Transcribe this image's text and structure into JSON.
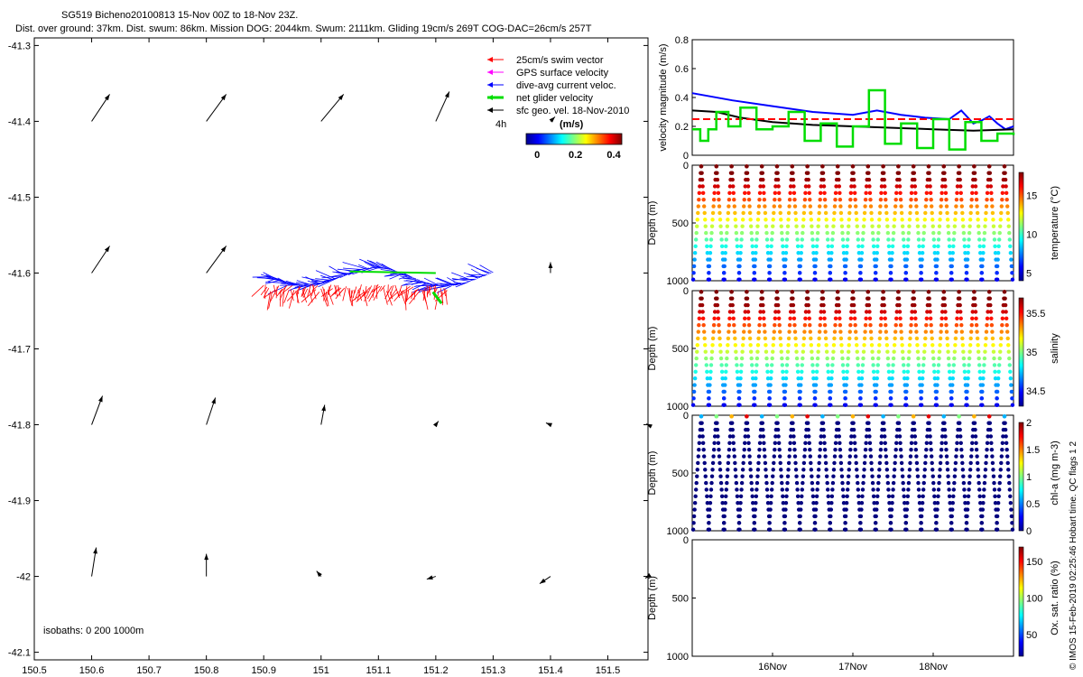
{
  "header": {
    "title": "SG519 Bicheno20100813 15-Nov 00Z to 18-Nov 23Z.",
    "subtitle": "Dist. over ground: 37km. Dist. swum: 86km. Mission DOG: 2044km. Swum: 2111km. Gliding 19cm/s 269T COG-DAC=26cm/s 257T"
  },
  "footer": {
    "credit": "© IMOS 15-Feb-2019 02:25:46 Hobart time. QC flags 1  2",
    "isobaths": "isobaths: 0   200  1000m"
  },
  "legend": {
    "items": [
      {
        "label": "25cm/s swim vector",
        "color": "#ff0000"
      },
      {
        "label": "GPS surface velocity",
        "color": "#ff00ff"
      },
      {
        "label": "dive-avg current veloc.",
        "color": "#0000ff"
      },
      {
        "label": "net glider velocity",
        "color": "#00dd00"
      },
      {
        "label": "sfc geo. vel. 18-Nov-2010",
        "color": "#000000"
      }
    ],
    "scale_label": "4h",
    "colorbar_title": "(m/s)",
    "colorbar_ticks": [
      "0",
      "0.2",
      "0.4"
    ]
  },
  "chart_data": [
    {
      "type": "scatter",
      "title": "map",
      "xlim": [
        150.5,
        151.57
      ],
      "ylim": [
        -42.11,
        -41.29
      ],
      "x_ticks": [
        "150.5",
        "150.6",
        "150.7",
        "150.8",
        "150.9",
        "151",
        "151.1",
        "151.2",
        "151.3",
        "151.4",
        "151.5"
      ],
      "y_ticks": [
        "-41.3",
        "-41.4",
        "-41.5",
        "-41.6",
        "-41.7",
        "-41.8",
        "-41.9",
        "-42",
        "-42.1"
      ],
      "surface_velocity_arrows": [
        {
          "x": 150.6,
          "y": -41.4,
          "u": 0.2,
          "v": 0.3
        },
        {
          "x": 150.8,
          "y": -41.4,
          "u": 0.22,
          "v": 0.3
        },
        {
          "x": 151.0,
          "y": -41.4,
          "u": 0.25,
          "v": 0.3
        },
        {
          "x": 151.2,
          "y": -41.4,
          "u": 0.15,
          "v": 0.33
        },
        {
          "x": 151.4,
          "y": -41.4,
          "u": 0.05,
          "v": 0.05
        },
        {
          "x": 150.6,
          "y": -41.6,
          "u": 0.2,
          "v": 0.3
        },
        {
          "x": 150.8,
          "y": -41.6,
          "u": 0.22,
          "v": 0.3
        },
        {
          "x": 151.4,
          "y": -41.6,
          "u": 0.0,
          "v": 0.12
        },
        {
          "x": 150.6,
          "y": -41.8,
          "u": 0.12,
          "v": 0.32
        },
        {
          "x": 150.8,
          "y": -41.8,
          "u": 0.1,
          "v": 0.3
        },
        {
          "x": 151.0,
          "y": -41.8,
          "u": 0.04,
          "v": 0.22
        },
        {
          "x": 151.2,
          "y": -41.8,
          "u": 0.03,
          "v": 0.04
        },
        {
          "x": 151.4,
          "y": -41.8,
          "u": -0.05,
          "v": 0.02
        },
        {
          "x": 151.57,
          "y": -41.8,
          "u": -0.02,
          "v": 0.01
        },
        {
          "x": 150.6,
          "y": -42.0,
          "u": 0.05,
          "v": 0.32
        },
        {
          "x": 150.8,
          "y": -42.0,
          "u": 0.0,
          "v": 0.25
        },
        {
          "x": 151.0,
          "y": -42.0,
          "u": -0.05,
          "v": 0.06
        },
        {
          "x": 151.2,
          "y": -42.0,
          "u": -0.1,
          "v": -0.03
        },
        {
          "x": 151.4,
          "y": -42.0,
          "u": -0.12,
          "v": -0.08
        },
        {
          "x": 151.57,
          "y": -42.0,
          "u": -0.03,
          "v": -0.02
        }
      ],
      "glider_track_lon": [
        151.3,
        150.9
      ],
      "glider_track_lat": [
        -41.6,
        -41.61
      ]
    },
    {
      "type": "line",
      "ylabel": "velocity magnitude (m/s)",
      "ylim": [
        0,
        0.8
      ],
      "y_ticks": [
        "0",
        "0.2",
        "0.4",
        "0.6",
        "0.8"
      ],
      "x_days": [
        15,
        19
      ],
      "series": [
        {
          "color": "#0000ff",
          "x": [
            15.0,
            15.5,
            16.0,
            16.5,
            17.0,
            17.3,
            17.6,
            17.9,
            18.2,
            18.35,
            18.5,
            18.6,
            18.7,
            18.8,
            18.9,
            19.0
          ],
          "y": [
            0.43,
            0.38,
            0.34,
            0.3,
            0.28,
            0.31,
            0.28,
            0.26,
            0.25,
            0.31,
            0.22,
            0.24,
            0.27,
            0.22,
            0.18,
            0.2
          ]
        },
        {
          "color": "#000000",
          "x": [
            15.0,
            15.3,
            15.6,
            16.0,
            16.5,
            17.0,
            17.5,
            18.0,
            18.5,
            19.0
          ],
          "y": [
            0.31,
            0.3,
            0.26,
            0.23,
            0.21,
            0.2,
            0.19,
            0.18,
            0.17,
            0.18
          ]
        },
        {
          "color": "#ff0000",
          "x": [
            15.0,
            19.0
          ],
          "y": [
            0.25,
            0.25
          ]
        },
        {
          "color": "#00dd00",
          "x": [
            15.0,
            15.1,
            15.2,
            15.3,
            15.45,
            15.6,
            15.8,
            16.0,
            16.2,
            16.4,
            16.6,
            16.8,
            17.0,
            17.2,
            17.4,
            17.6,
            17.8,
            18.0,
            18.2,
            18.4,
            18.6,
            18.8,
            19.0
          ],
          "y": [
            0.18,
            0.1,
            0.18,
            0.3,
            0.2,
            0.33,
            0.18,
            0.2,
            0.3,
            0.1,
            0.22,
            0.06,
            0.2,
            0.45,
            0.08,
            0.22,
            0.05,
            0.25,
            0.04,
            0.23,
            0.1,
            0.15,
            0.14
          ]
        }
      ]
    },
    {
      "type": "scatter",
      "ylabel": "Depth (m)",
      "cblabel": "temperature (°C)",
      "ylim": [
        1000,
        0
      ],
      "y_ticks": [
        "0",
        "500",
        "1000"
      ],
      "cb_ticks": [
        "5",
        "10",
        "15"
      ],
      "cb_range": [
        4,
        18
      ],
      "dives": 21
    },
    {
      "type": "scatter",
      "ylabel": "Depth (m)",
      "cblabel": "salinity",
      "ylim": [
        1000,
        0
      ],
      "y_ticks": [
        "0",
        "500",
        "1000"
      ],
      "cb_ticks": [
        "34.5",
        "35",
        "35.5"
      ],
      "cb_range": [
        34.3,
        35.7
      ],
      "dives": 21
    },
    {
      "type": "scatter",
      "ylabel": "Depth (m)",
      "cblabel": "chl-a (mg m-3)",
      "ylim": [
        1000,
        0
      ],
      "y_ticks": [
        "0",
        "500",
        "1000"
      ],
      "cb_ticks": [
        "0",
        "0.5",
        "1",
        "1.5",
        "2"
      ],
      "cb_range": [
        0,
        2
      ],
      "dives": 21
    },
    {
      "type": "scatter",
      "ylabel": "Depth (m)",
      "cblabel": "Ox. sat. ratio (%)",
      "ylim": [
        1000,
        0
      ],
      "y_ticks": [
        "0",
        "500",
        "1000"
      ],
      "cb_ticks": [
        "50",
        "100",
        "150"
      ],
      "cb_range": [
        20,
        170
      ],
      "dives": 0,
      "x_ticks": [
        "16Nov",
        "17Nov",
        "18Nov"
      ]
    }
  ]
}
